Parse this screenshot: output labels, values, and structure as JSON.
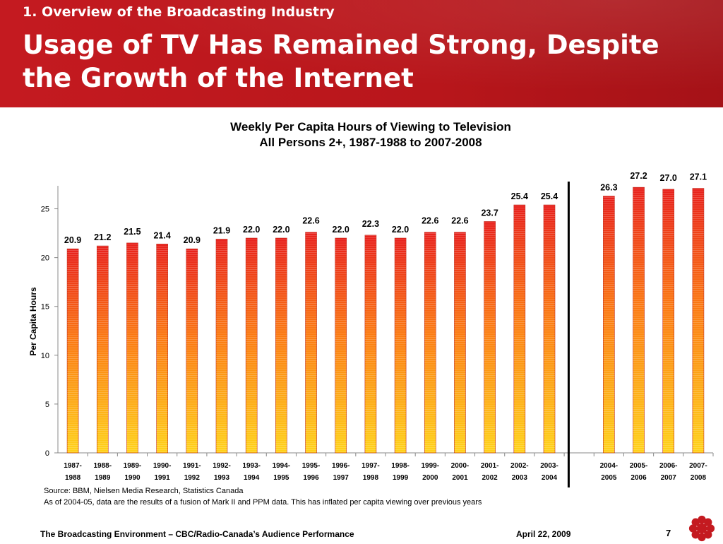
{
  "header": {
    "section": "1. Overview of the Broadcasting Industry",
    "title": "Usage of TV Has Remained Strong, Despite the Growth of the Internet"
  },
  "chart_data": {
    "type": "bar",
    "title": "Weekly Per Capita Hours of Viewing to Television",
    "subtitle": "All Persons 2+, 1987-1988 to 2007-2008",
    "ylabel": "Per Capita Hours",
    "xlabel": "",
    "ylim": [
      0,
      27.5
    ],
    "yticks": [
      0,
      5,
      10,
      15,
      20,
      25
    ],
    "grid": false,
    "legend": "none",
    "categories": [
      [
        "1987-",
        "1988"
      ],
      [
        "1988-",
        "1989"
      ],
      [
        "1989-",
        "1990"
      ],
      [
        "1990-",
        "1991"
      ],
      [
        "1991-",
        "1992"
      ],
      [
        "1992-",
        "1993"
      ],
      [
        "1993-",
        "1994"
      ],
      [
        "1994-",
        "1995"
      ],
      [
        "1995-",
        "1996"
      ],
      [
        "1996-",
        "1997"
      ],
      [
        "1997-",
        "1998"
      ],
      [
        "1998-",
        "1999"
      ],
      [
        "1999-",
        "2000"
      ],
      [
        "2000-",
        "2001"
      ],
      [
        "2001-",
        "2002"
      ],
      [
        "2002-",
        "2003"
      ],
      [
        "2003-",
        "2004"
      ],
      [
        "",
        ""
      ],
      [
        "2004-",
        "2005"
      ],
      [
        "2005-",
        "2006"
      ],
      [
        "2006-",
        "2007"
      ],
      [
        "2007-",
        "2008"
      ]
    ],
    "values": [
      20.9,
      21.2,
      21.5,
      21.4,
      20.9,
      21.9,
      22.0,
      22.0,
      22.6,
      22.0,
      22.3,
      22.0,
      22.6,
      22.6,
      23.7,
      25.4,
      25.4,
      null,
      26.3,
      27.2,
      27.0,
      27.1
    ],
    "value_labels": [
      "20.9",
      "21.2",
      "21.5",
      "21.4",
      "20.9",
      "21.9",
      "22.0",
      "22.0",
      "22.6",
      "22.0",
      "22.3",
      "22.0",
      "22.6",
      "22.6",
      "23.7",
      "25.4",
      "25.4",
      "",
      "26.3",
      "27.2",
      "27.0",
      "27.1"
    ],
    "divider_after_category": 17,
    "colors": {
      "bar_top": "#e8211c",
      "bar_mid": "#fb7a13",
      "bar_bottom": "#ffd21a",
      "bar_edge": "#c0281a"
    }
  },
  "source": {
    "line1": "Source:  BBM, Nielsen Media Research, Statistics Canada",
    "line2": "As of 2004-05, data are the results of a fusion of Mark II and PPM data. This has inflated per capita viewing over previous years"
  },
  "footer": {
    "left": "The Broadcasting Environment – CBC/Radio-Canada’s Audience Performance",
    "date": "April 22, 2009",
    "page": "7",
    "logo_icon": "cbc-gem-icon",
    "logo_color": "#c41a20"
  }
}
